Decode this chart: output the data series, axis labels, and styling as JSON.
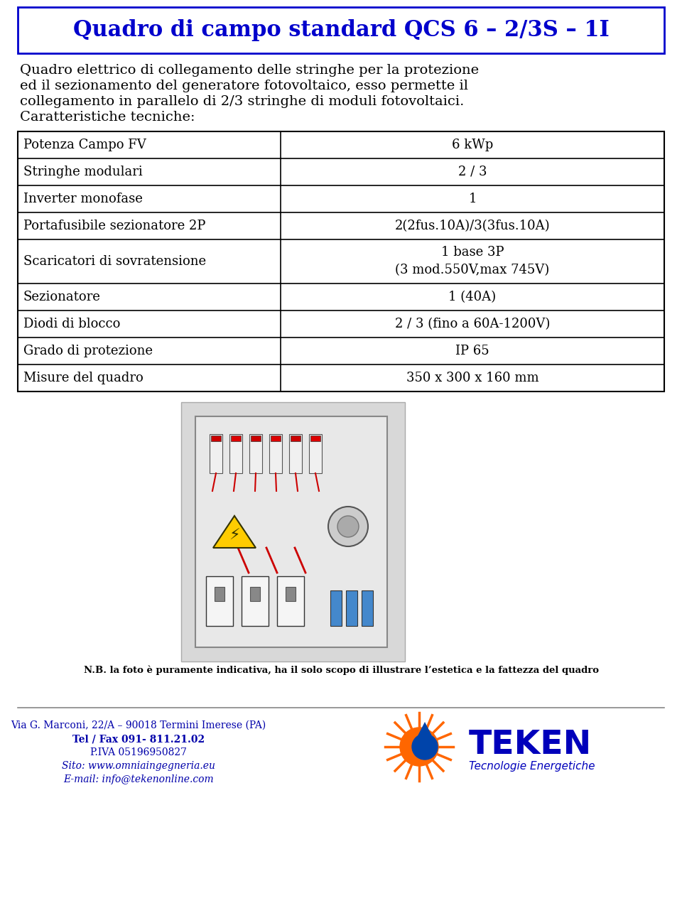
{
  "title": "Quadro di campo standard QCS 6 – 2/3S – 1I",
  "title_color": "#0000CC",
  "title_fontsize": 22,
  "intro_lines": [
    "Quadro elettrico di collegamento delle stringhe per la protezione",
    "ed il sezionamento del generatore fotovoltaico, esso permette il",
    "collegamento in parallelo di 2/3 stringhe di moduli fotovoltaici.",
    "Caratteristiche tecniche:"
  ],
  "table_rows": [
    [
      "Potenza Campo FV",
      "6 kWp"
    ],
    [
      "Stringhe modulari",
      "2 / 3"
    ],
    [
      "Inverter monofase",
      "1"
    ],
    [
      "Portafusibile sezionatore 2P",
      "2(2fus.10A)/3(3fus.10A)"
    ],
    [
      "Scaricatori di sovratensione",
      "1 base 3P\n(3 mod.550V,max 745V)"
    ],
    [
      "Sezionatore",
      "1 (40A)"
    ],
    [
      "Diodi di blocco",
      "2 / 3 (fino a 60A-1200V)"
    ],
    [
      "Grado di protezione",
      "IP 65"
    ],
    [
      "Misure del quadro",
      "350 x 300 x 160 mm"
    ]
  ],
  "note_text": "N.B. la foto è puramente indicativa, ha il solo scopo di illustrare l’estetica e la fattezza del quadro",
  "footer_line1": "Via G. Marconi, 22/A – 90018 Termini Imerese (PA)",
  "footer_line2": "Tel / Fax 091- 811.21.02",
  "footer_line3": "P.IVA 05196950827",
  "footer_line4": "Sito: www.omniaingegneria.eu",
  "footer_line5": "E-mail: info@tekenonline.com",
  "teken_text": "TEKEN",
  "teken_sub": "Tecnologie Energetiche",
  "bg_color": "#ffffff",
  "table_font_size": 13,
  "intro_font_size": 14,
  "footer_font_size": 10
}
